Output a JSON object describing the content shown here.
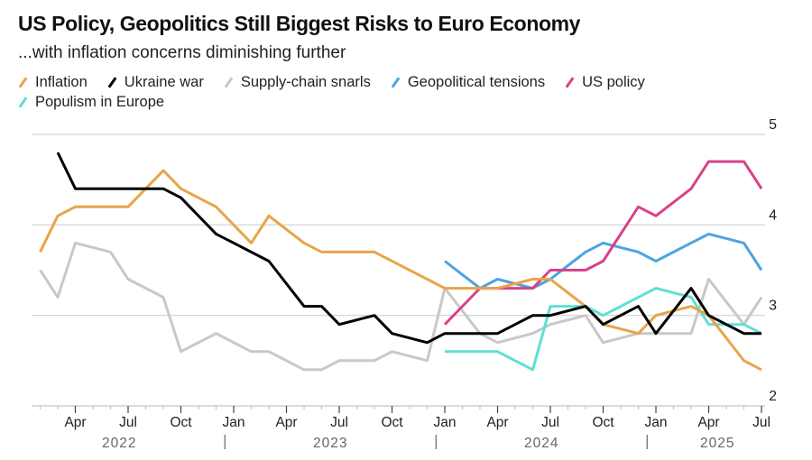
{
  "header": {
    "title": "US Policy, Geopolitics Still Biggest Risks to Euro Economy",
    "subtitle": "...with inflation concerns diminishing further"
  },
  "chart_data": {
    "type": "line",
    "title": "US Policy, Geopolitics Still Biggest Risks to Euro Economy",
    "subtitle": "...with inflation concerns diminishing further",
    "xlabel": "",
    "ylabel": "",
    "ylim": [
      2,
      5
    ],
    "yticks": [
      2,
      3,
      4,
      5
    ],
    "ytick_labels": [
      "2",
      "3",
      "4",
      "5"
    ],
    "y_axis_side": "right",
    "grid": true,
    "legend_position": "top-left",
    "x_start": "Feb 2022",
    "x_end": "Jul 2025",
    "x_unit": "month index (0 = Feb 2022)",
    "xticks": [
      {
        "m": 2,
        "label": "Apr"
      },
      {
        "m": 5,
        "label": "Jul"
      },
      {
        "m": 8,
        "label": "Oct"
      },
      {
        "m": 11,
        "label": "Jan"
      },
      {
        "m": 14,
        "label": "Apr"
      },
      {
        "m": 17,
        "label": "Jul"
      },
      {
        "m": 20,
        "label": "Oct"
      },
      {
        "m": 23,
        "label": "Jan"
      },
      {
        "m": 26,
        "label": "Apr"
      },
      {
        "m": 29,
        "label": "Jul"
      },
      {
        "m": 32,
        "label": "Oct"
      },
      {
        "m": 35,
        "label": "Jan"
      },
      {
        "m": 38,
        "label": "Apr"
      },
      {
        "m": 41,
        "label": "Jul"
      }
    ],
    "years": [
      {
        "label": "2022",
        "center_m": 4.5
      },
      {
        "label": "2023",
        "center_m": 16.5
      },
      {
        "label": "2024",
        "center_m": 28.5
      },
      {
        "label": "2025",
        "center_m": 38.5
      }
    ],
    "year_separators_m": [
      10.5,
      22.5,
      34.5
    ],
    "series": [
      {
        "name": "Inflation",
        "color": "#e8a44a",
        "x": [
          0,
          1,
          2,
          5,
          7,
          8,
          10,
          12,
          13,
          15,
          16,
          19,
          23,
          26,
          28,
          29,
          31,
          32,
          34,
          35,
          37,
          38,
          40,
          41
        ],
        "values": [
          3.7,
          4.1,
          4.2,
          4.2,
          4.6,
          4.4,
          4.2,
          3.8,
          4.1,
          3.8,
          3.7,
          3.7,
          3.3,
          3.3,
          3.4,
          3.4,
          3.1,
          2.9,
          2.8,
          3.0,
          3.1,
          3.0,
          2.5,
          2.4
        ]
      },
      {
        "name": "Ukraine war",
        "color": "#000000",
        "x": [
          1,
          2,
          7,
          8,
          10,
          13,
          15,
          16,
          17,
          19,
          20,
          22,
          23,
          26,
          28,
          29,
          31,
          32,
          34,
          35,
          37,
          38,
          40,
          41
        ],
        "values": [
          4.8,
          4.4,
          4.4,
          4.3,
          3.9,
          3.6,
          3.1,
          3.1,
          2.9,
          3.0,
          2.8,
          2.7,
          2.8,
          2.8,
          3.0,
          3.0,
          3.1,
          2.9,
          3.1,
          2.8,
          3.3,
          3.0,
          2.8,
          2.8
        ]
      },
      {
        "name": "Supply-chain snarls",
        "color": "#c8c8c8",
        "x": [
          0,
          1,
          2,
          4,
          5,
          7,
          8,
          10,
          12,
          13,
          15,
          16,
          17,
          19,
          20,
          22,
          23,
          25,
          26,
          28,
          29,
          31,
          32,
          34,
          36,
          37,
          38,
          40,
          41
        ],
        "values": [
          3.5,
          3.2,
          3.8,
          3.7,
          3.4,
          3.2,
          2.6,
          2.8,
          2.6,
          2.6,
          2.4,
          2.4,
          2.5,
          2.5,
          2.6,
          2.5,
          3.3,
          2.8,
          2.7,
          2.8,
          2.9,
          3.0,
          2.7,
          2.8,
          2.8,
          2.8,
          3.4,
          2.9,
          3.2
        ]
      },
      {
        "name": "Geopolitical tensions",
        "color": "#4ea3e0",
        "x": [
          23,
          25,
          26,
          28,
          29,
          31,
          32,
          34,
          35,
          38,
          40,
          41
        ],
        "values": [
          3.6,
          3.3,
          3.4,
          3.3,
          3.4,
          3.7,
          3.8,
          3.7,
          3.6,
          3.9,
          3.8,
          3.5
        ]
      },
      {
        "name": "US policy",
        "color": "#d9418a",
        "x": [
          23,
          25,
          28,
          29,
          31,
          32,
          34,
          35,
          37,
          38,
          40,
          41
        ],
        "values": [
          2.9,
          3.3,
          3.3,
          3.5,
          3.5,
          3.6,
          4.2,
          4.1,
          4.4,
          4.7,
          4.7,
          4.4
        ]
      },
      {
        "name": "Populism in Europe",
        "color": "#5ee0d4",
        "x": [
          23,
          26,
          28,
          29,
          31,
          32,
          35,
          37,
          38,
          40,
          41
        ],
        "values": [
          2.6,
          2.6,
          2.4,
          3.1,
          3.1,
          3.0,
          3.3,
          3.2,
          2.9,
          2.9,
          2.8
        ]
      }
    ]
  }
}
